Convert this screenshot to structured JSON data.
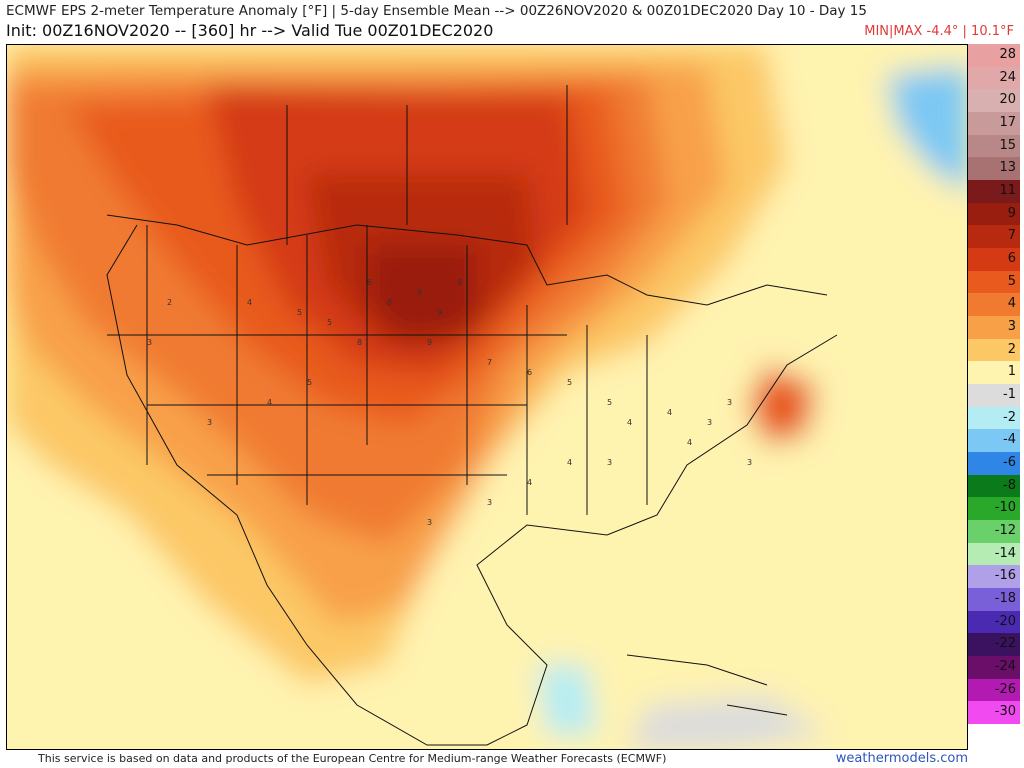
{
  "header": {
    "title_line1": "ECMWF EPS 2-meter Temperature Anomaly [°F] | 5-day Ensemble Mean --> 00Z26NOV2020 & 00Z01DEC2020   Day 10 - Day 15",
    "title_line2": "Init: 00Z16NOV2020 -- [360] hr --> Valid Tue 00Z01DEC2020",
    "minmax": "MIN|MAX -4.4° | 10.1°F"
  },
  "legend": {
    "items": [
      {
        "label": "28",
        "color": "#e8a0a0"
      },
      {
        "label": "24",
        "color": "#e0a8a8"
      },
      {
        "label": "20",
        "color": "#d8b0b0"
      },
      {
        "label": "17",
        "color": "#c89a9a"
      },
      {
        "label": "15",
        "color": "#b88888"
      },
      {
        "label": "13",
        "color": "#a87272"
      },
      {
        "label": "11",
        "color": "#7a1a1a"
      },
      {
        "label": "9",
        "color": "#9a1e10"
      },
      {
        "label": "7",
        "color": "#b82a10"
      },
      {
        "label": "6",
        "color": "#d43a14"
      },
      {
        "label": "5",
        "color": "#e85a1e"
      },
      {
        "label": "4",
        "color": "#f07a30"
      },
      {
        "label": "3",
        "color": "#f8a048"
      },
      {
        "label": "2",
        "color": "#fcc866"
      },
      {
        "label": "1",
        "color": "#fff3b0"
      },
      {
        "label": "-1",
        "color": "#dcdcdc"
      },
      {
        "label": "-2",
        "color": "#b4ecf4"
      },
      {
        "label": "-4",
        "color": "#7cc8f4"
      },
      {
        "label": "-6",
        "color": "#2f86e6"
      },
      {
        "label": "-8",
        "color": "#0a7a1a"
      },
      {
        "label": "-10",
        "color": "#2aa82a"
      },
      {
        "label": "-12",
        "color": "#6ad06a"
      },
      {
        "label": "-14",
        "color": "#b4ecb4"
      },
      {
        "label": "-16",
        "color": "#b0a0e8"
      },
      {
        "label": "-18",
        "color": "#7a60d8"
      },
      {
        "label": "-20",
        "color": "#4a2ab0"
      },
      {
        "label": "-22",
        "color": "#3a1260"
      },
      {
        "label": "-24",
        "color": "#6a0e6a"
      },
      {
        "label": "-26",
        "color": "#b21ab2"
      },
      {
        "label": "-30",
        "color": "#f04af0"
      }
    ]
  },
  "footer": {
    "credit": "This service is based on data and products of the European Centre for Medium-range Weather Forecasts (ECMWF)",
    "brand": "weathermodels.com"
  },
  "map_labels": [
    {
      "text": "9"
    },
    {
      "text": "9"
    },
    {
      "text": "8"
    },
    {
      "text": "9"
    },
    {
      "text": "8"
    },
    {
      "text": "9"
    },
    {
      "text": "7"
    },
    {
      "text": "6"
    },
    {
      "text": "5"
    },
    {
      "text": "5"
    },
    {
      "text": "4"
    },
    {
      "text": "4"
    },
    {
      "text": "3"
    },
    {
      "text": "3"
    },
    {
      "text": "4"
    },
    {
      "text": "3"
    },
    {
      "text": "5"
    },
    {
      "text": "4"
    },
    {
      "text": "3"
    },
    {
      "text": "2"
    },
    {
      "text": "3"
    },
    {
      "text": "4"
    },
    {
      "text": "5"
    },
    {
      "text": "3"
    },
    {
      "text": "4"
    },
    {
      "text": "4"
    },
    {
      "text": "3"
    },
    {
      "text": "3"
    },
    {
      "text": "6"
    },
    {
      "text": "5"
    }
  ]
}
